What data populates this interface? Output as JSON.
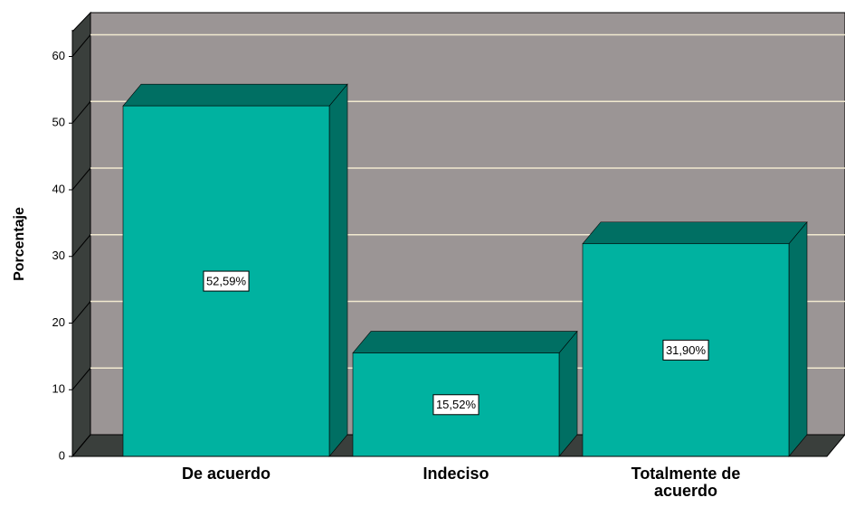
{
  "chart_data": {
    "type": "bar3d",
    "ylabel": "Porcentaje",
    "categories": [
      "De acuerdo",
      "Indeciso",
      "Totalmente de acuerdo"
    ],
    "values": [
      52.59,
      15.52,
      31.9
    ],
    "value_labels": [
      "52,59%",
      "15,52%",
      "31,90%"
    ],
    "color": "#00b2a0",
    "ylim": [
      0,
      64
    ],
    "yticks": [
      0,
      10,
      20,
      30,
      40,
      50,
      60
    ],
    "grid": true
  }
}
